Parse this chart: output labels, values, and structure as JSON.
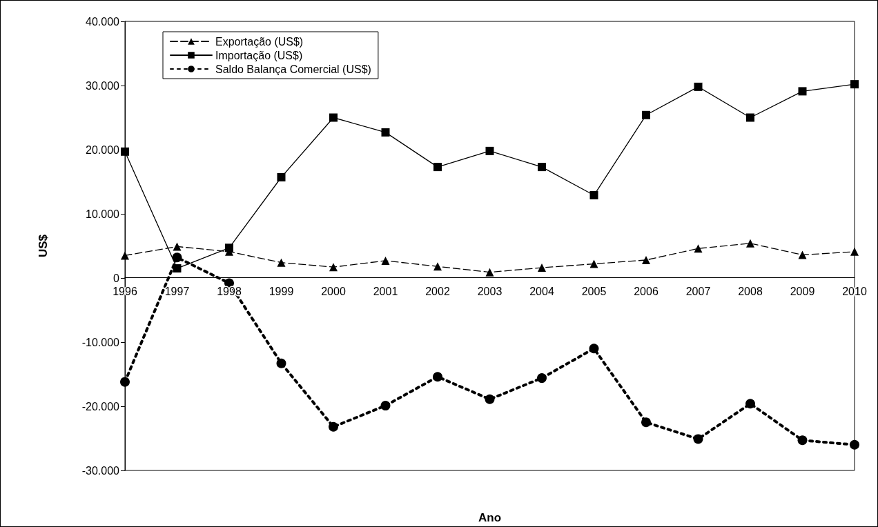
{
  "chart_data": {
    "type": "line",
    "xlabel": "Ano",
    "ylabel": "US$",
    "categories": [
      "1996",
      "1997",
      "1998",
      "1999",
      "2000",
      "2001",
      "2002",
      "2003",
      "2004",
      "2005",
      "2006",
      "2007",
      "2008",
      "2009",
      "2010"
    ],
    "series": [
      {
        "name": "Exportação (US$)",
        "color": "#000000",
        "marker": "triangle",
        "line_style": "dashed",
        "values": [
          3500,
          4900,
          4100,
          2400,
          1700,
          2700,
          1800,
          900,
          1600,
          2200,
          2800,
          4600,
          5400,
          3600,
          4100
        ]
      },
      {
        "name": "Importação (US$)",
        "color": "#000000",
        "marker": "square",
        "line_style": "solid",
        "values": [
          19700,
          1500,
          4700,
          15700,
          25000,
          22700,
          17300,
          19800,
          17300,
          12900,
          25400,
          29800,
          25000,
          29100,
          30200
        ]
      },
      {
        "name": "Saldo Balança Comercial (US$)",
        "color": "#000000",
        "marker": "circle",
        "line_style": "dotted",
        "values": [
          -16200,
          3200,
          -800,
          -13300,
          -23200,
          -19900,
          -15400,
          -18900,
          -15600,
          -11000,
          -22500,
          -25100,
          -19600,
          -25300,
          -26000
        ]
      }
    ],
    "ylim": [
      -30000,
      40000
    ],
    "yticks": [
      {
        "value": -30000,
        "label": "-30.000"
      },
      {
        "value": -20000,
        "label": "-20.000"
      },
      {
        "value": -10000,
        "label": "-10.000"
      },
      0,
      {
        "value": 10000,
        "label": "10.000"
      },
      {
        "value": 20000,
        "label": "20.000"
      },
      {
        "value": 30000,
        "label": "30.000"
      },
      {
        "value": 40000,
        "label": "40.000"
      }
    ],
    "grid": false,
    "legend": "top left"
  }
}
